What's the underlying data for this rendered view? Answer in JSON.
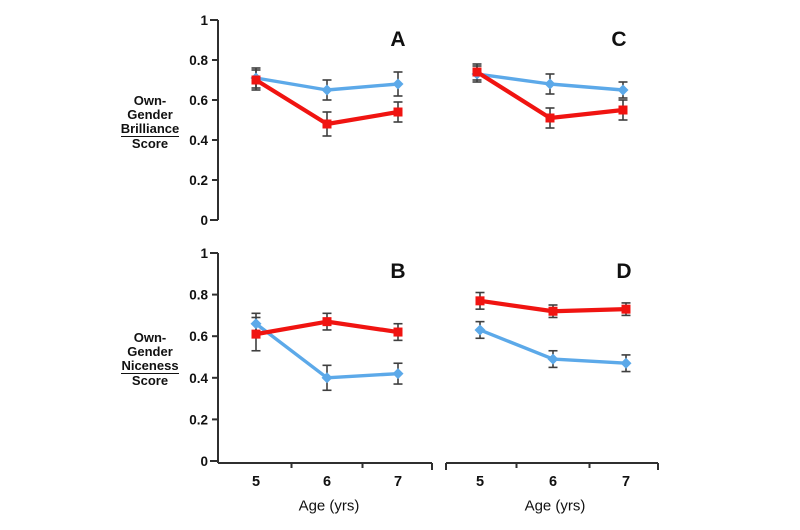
{
  "figure": {
    "background": "#ffffff",
    "row_labels": [
      {
        "lines": [
          "Own-",
          "Gender",
          "Brilliance",
          "Score"
        ],
        "underline_index": 2
      },
      {
        "lines": [
          "Own-",
          "Gender",
          "Niceness",
          "Score"
        ],
        "underline_index": 2
      }
    ]
  },
  "colors": {
    "red_series": "#F01411",
    "blue_series": "#5CA9E9",
    "error_bar": "#3F3F3F",
    "axis": "#2F2F2F",
    "text": "#111111"
  },
  "chart_data": [
    {
      "type": "line",
      "panel": "A",
      "position": "top-left",
      "measure": "Own-Gender Brilliance Score",
      "x": [
        5,
        6,
        7
      ],
      "xlabel": "",
      "ylim": [
        0,
        1
      ],
      "yticks": [
        1,
        0.8,
        0.6,
        0.4,
        0.2,
        0
      ],
      "show_y_axis": true,
      "show_x_axis": false,
      "series": [
        {
          "name": "blue series",
          "marker": "diamond",
          "color_key": "blue_series",
          "values": [
            0.71,
            0.65,
            0.68
          ],
          "errors": [
            0.05,
            0.05,
            0.06
          ]
        },
        {
          "name": "red series",
          "marker": "square",
          "color_key": "red_series",
          "values": [
            0.7,
            0.48,
            0.54
          ],
          "errors": [
            0.05,
            0.06,
            0.05
          ]
        }
      ]
    },
    {
      "type": "line",
      "panel": "C",
      "position": "top-right",
      "measure": "Own-Gender Brilliance Score",
      "x": [
        5,
        6,
        7
      ],
      "xlabel": "",
      "ylim": [
        0,
        1
      ],
      "yticks": [
        1,
        0.8,
        0.6,
        0.4,
        0.2,
        0
      ],
      "show_y_axis": false,
      "show_x_axis": false,
      "series": [
        {
          "name": "blue series",
          "marker": "diamond",
          "color_key": "blue_series",
          "values": [
            0.73,
            0.68,
            0.65
          ],
          "errors": [
            0.04,
            0.05,
            0.04
          ]
        },
        {
          "name": "red series",
          "marker": "square",
          "color_key": "red_series",
          "values": [
            0.74,
            0.51,
            0.55
          ],
          "errors": [
            0.04,
            0.05,
            0.05
          ]
        }
      ]
    },
    {
      "type": "line",
      "panel": "B",
      "position": "bottom-left",
      "measure": "Own-Gender Niceness Score",
      "x": [
        5,
        6,
        7
      ],
      "xlabel": "Age (yrs)",
      "ylim": [
        0,
        1
      ],
      "yticks": [
        1,
        0.8,
        0.6,
        0.4,
        0.2,
        0
      ],
      "show_y_axis": true,
      "show_x_axis": true,
      "series": [
        {
          "name": "blue series",
          "marker": "diamond",
          "color_key": "blue_series",
          "values": [
            0.66,
            0.4,
            0.42
          ],
          "errors": [
            0.05,
            0.06,
            0.05
          ]
        },
        {
          "name": "red series",
          "marker": "square",
          "color_key": "red_series",
          "values": [
            0.61,
            0.67,
            0.62
          ],
          "errors": [
            0.08,
            0.04,
            0.04
          ]
        }
      ]
    },
    {
      "type": "line",
      "panel": "D",
      "position": "bottom-right",
      "measure": "Own-Gender Niceness Score",
      "x": [
        5,
        6,
        7
      ],
      "xlabel": "Age (yrs)",
      "ylim": [
        0,
        1
      ],
      "yticks": [
        1,
        0.8,
        0.6,
        0.4,
        0.2,
        0
      ],
      "show_y_axis": false,
      "show_x_axis": true,
      "series": [
        {
          "name": "blue series",
          "marker": "diamond",
          "color_key": "blue_series",
          "values": [
            0.63,
            0.49,
            0.47
          ],
          "errors": [
            0.04,
            0.04,
            0.04
          ]
        },
        {
          "name": "red series",
          "marker": "square",
          "color_key": "red_series",
          "values": [
            0.77,
            0.72,
            0.73
          ],
          "errors": [
            0.04,
            0.03,
            0.03
          ]
        }
      ]
    }
  ]
}
